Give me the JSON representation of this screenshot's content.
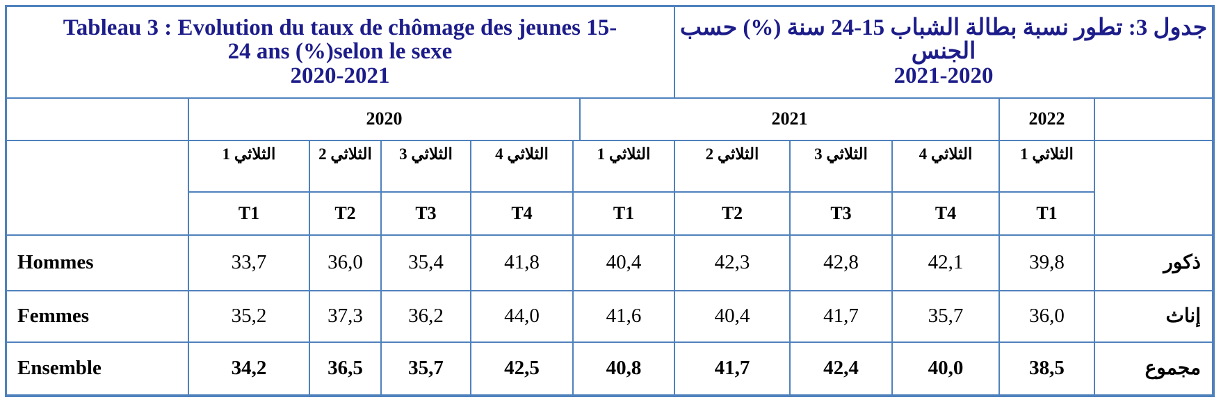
{
  "header": {
    "title_fr": [
      "Tableau 3 : Evolution du taux de chômage des jeunes 15-",
      "24 ans  (%)selon le sexe",
      "2020-2021"
    ],
    "title_ar": [
      "جدول 3: تطور نسبة بطالة الشباب 15-24 سنة (%) حسب",
      "الجنس",
      "2021-2020"
    ]
  },
  "table": {
    "years": [
      "2020",
      "2021",
      "2022"
    ],
    "quarters_ar": [
      "الثلاثي 1",
      "الثلاثي 2",
      "الثلاثي 3",
      "الثلاثي 4",
      "الثلاثي 1",
      "الثلاثي 2",
      "الثلاثي 3",
      "الثلاثي 4",
      "الثلاثي 1"
    ],
    "quarters": [
      "T1",
      "T2",
      "T3",
      "T4",
      "T1",
      "T2",
      "T3",
      "T4",
      "T1"
    ],
    "rows": [
      {
        "label_fr": "Hommes",
        "label_ar": "ذكور",
        "values": [
          "33,7",
          "36,0",
          "35,4",
          "41,8",
          "40,4",
          "42,3",
          "42,8",
          "42,1",
          "39,8"
        ]
      },
      {
        "label_fr": "Femmes",
        "label_ar": "إناث",
        "values": [
          "35,2",
          "37,3",
          "36,2",
          "44,0",
          "41,6",
          "40,4",
          "41,7",
          "35,7",
          "36,0"
        ]
      },
      {
        "label_fr": "Ensemble",
        "label_ar": "مجموع",
        "values": [
          "34,2",
          "36,5",
          "35,7",
          "42,5",
          "40,8",
          "41,7",
          "42,4",
          "40,0",
          "38,5"
        ]
      }
    ]
  }
}
